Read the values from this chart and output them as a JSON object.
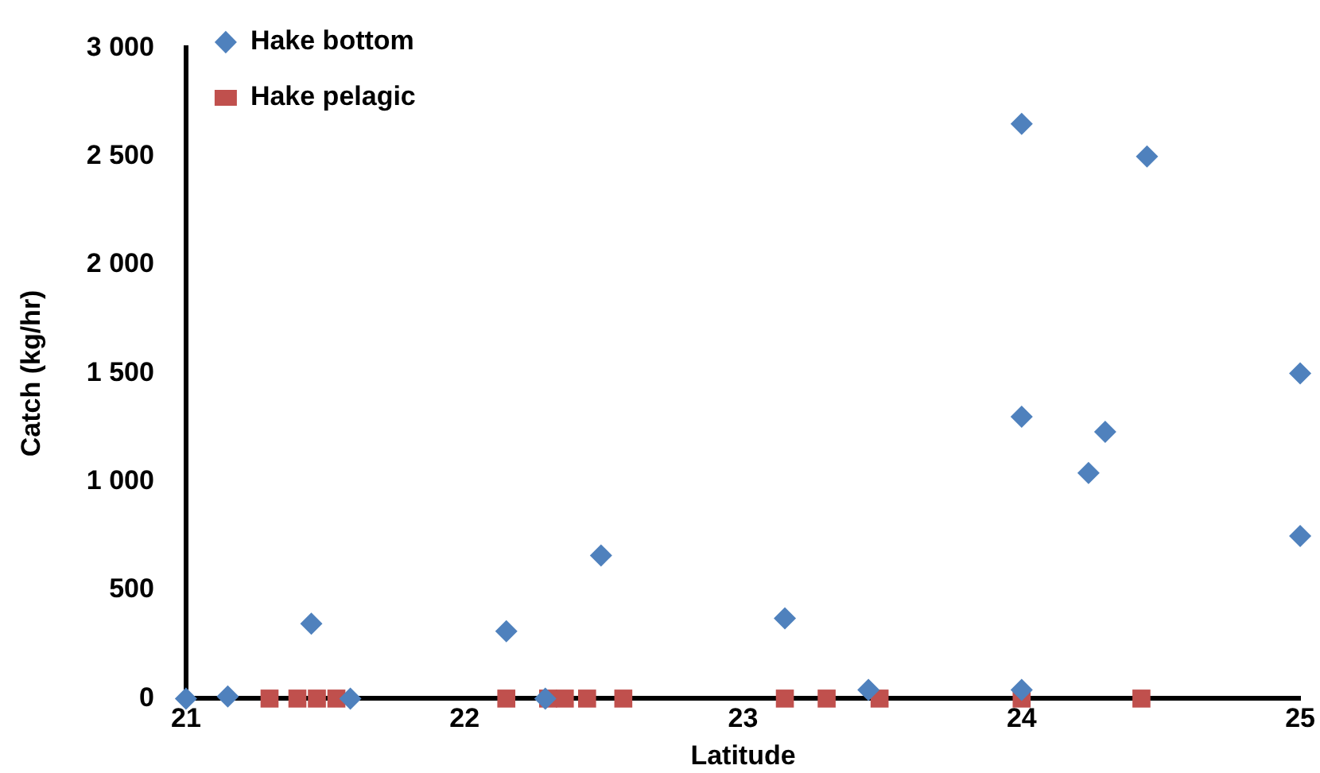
{
  "chart_data": {
    "type": "scatter",
    "xlabel": "Latitude",
    "ylabel": "Catch (kg/hr)",
    "xlim": [
      21,
      25
    ],
    "xticks": [
      21,
      22,
      23,
      24,
      25
    ],
    "ylim": [
      0,
      3000
    ],
    "yticks": [
      0,
      500,
      {
        "value": 1000,
        "label": "1 000"
      },
      {
        "value": 1500,
        "label": "1 500"
      },
      {
        "value": 2000,
        "label": "2 000"
      },
      {
        "value": 2500,
        "label": "2 500"
      },
      {
        "value": 3000,
        "label": "3 000"
      }
    ],
    "grid": false,
    "legend": "top left",
    "series": [
      {
        "name": "Hake bottom",
        "color": "#4f81bd",
        "marker": "diamond",
        "x": [
          21.0,
          21.15,
          21.45,
          21.59,
          22.15,
          22.29,
          22.49,
          23.15,
          23.45,
          24.0,
          24.0,
          24.0,
          24.24,
          24.3,
          24.45,
          25.0,
          25.0
        ],
        "values": [
          0,
          10,
          345,
          0,
          310,
          0,
          660,
          370,
          40,
          40,
          1300,
          2650,
          1040,
          1230,
          2500,
          1500,
          750
        ]
      },
      {
        "name": "Hake pelagic",
        "color": "#c0504d",
        "marker": "square",
        "x": [
          21.3,
          21.4,
          21.47,
          21.54,
          22.15,
          22.3,
          22.36,
          22.44,
          22.57,
          23.15,
          23.3,
          23.49,
          24.0,
          24.43
        ],
        "values": [
          0,
          0,
          0,
          0,
          0,
          0,
          0,
          0,
          0,
          0,
          0,
          0,
          0,
          0
        ]
      }
    ]
  }
}
